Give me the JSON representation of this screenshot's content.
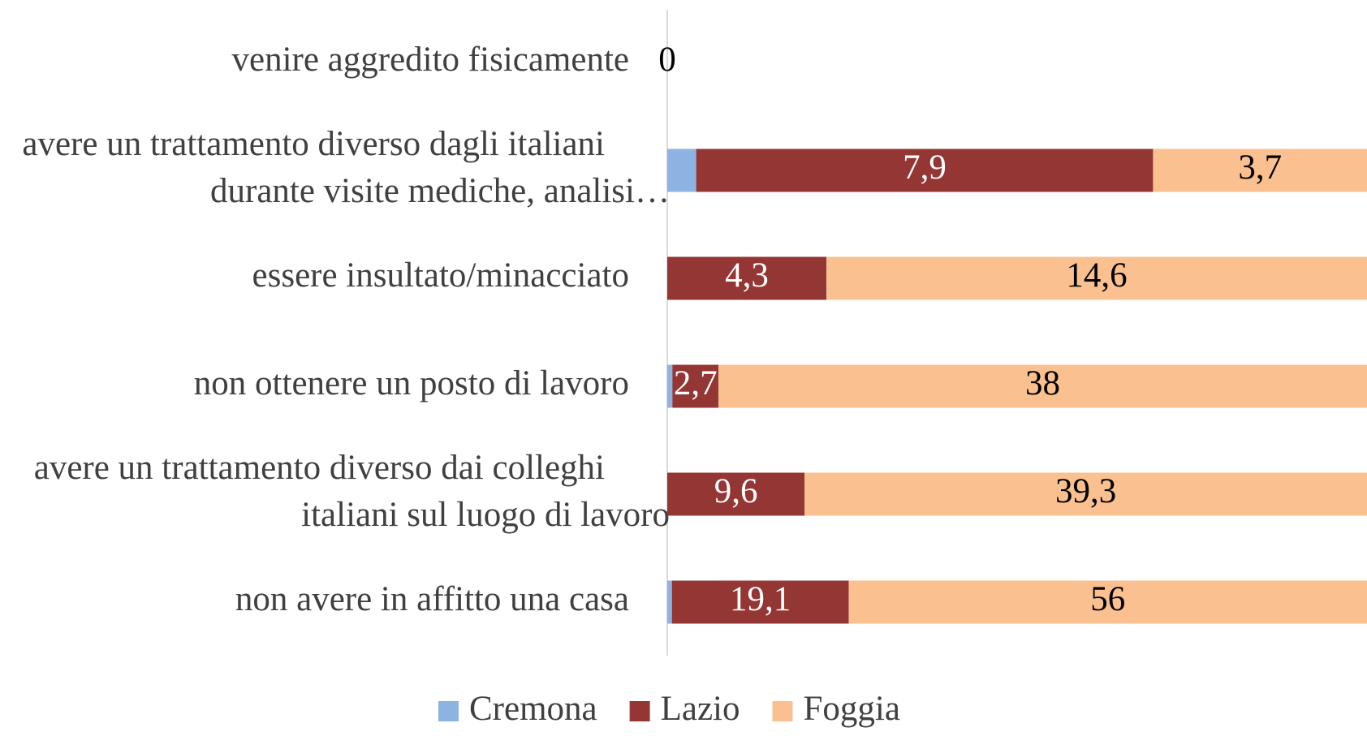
{
  "chart_data": {
    "type": "stacked-bar-100",
    "categories": [
      "venire aggredito fisicamente",
      "avere un trattamento diverso dagli italiani durante visite mediche, analisi…",
      "essere insultato/minacciato",
      "non ottenere un posto di lavoro",
      "avere un trattamento diverso dai colleghi italiani sul luogo di lavoro",
      "non avere in affitto una casa"
    ],
    "series": [
      {
        "name": "Cremona",
        "color": "#8db3e2",
        "values": [
          0,
          0.5,
          0,
          0.3,
          0,
          0.5
        ]
      },
      {
        "name": "Lazio",
        "color": "#943634",
        "values": [
          0,
          7.9,
          4.3,
          2.7,
          9.6,
          19.1
        ],
        "value_labels": [
          null,
          "7,9",
          "4,3",
          "2,7",
          "9,6",
          "19,1"
        ]
      },
      {
        "name": "Foggia",
        "color": "#fac090",
        "values": [
          0,
          3.7,
          14.6,
          38,
          39.3,
          56
        ],
        "value_labels": [
          null,
          "3,7",
          "14,6",
          "38",
          "39,3",
          "56"
        ]
      }
    ],
    "legend": "bottom"
  }
}
